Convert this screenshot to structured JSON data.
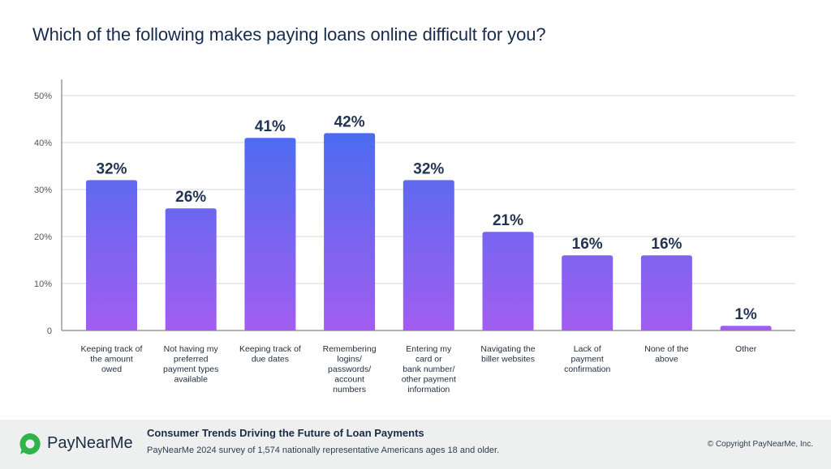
{
  "chart_data": {
    "type": "bar",
    "title": "Which of the following makes paying loans online difficult for you?",
    "categories": [
      "Keeping track of the amount owed",
      "Not having my preferred payment types available",
      "Keeping track of due dates",
      "Remembering logins/ passwords/ account numbers",
      "Entering my card or bank number/ other payment information",
      "Navigating the biller websites",
      "Lack of payment confirmation",
      "None of the above",
      "Other"
    ],
    "category_lines": [
      [
        "Keeping track of",
        "the amount",
        "owed"
      ],
      [
        "Not having my",
        "preferred",
        "payment types",
        "available"
      ],
      [
        "Keeping track of",
        "due dates"
      ],
      [
        "Remembering",
        "logins/",
        "passwords/",
        "account",
        "numbers"
      ],
      [
        "Entering my",
        "card or",
        "bank number/",
        "other payment",
        "information"
      ],
      [
        "Navigating the",
        "biller websites"
      ],
      [
        "Lack of",
        "payment",
        "confirmation"
      ],
      [
        "None of the",
        "above"
      ],
      [
        "Other"
      ]
    ],
    "values": [
      32,
      26,
      41,
      42,
      32,
      21,
      16,
      16,
      1
    ],
    "value_labels": [
      "32%",
      "26%",
      "41%",
      "42%",
      "32%",
      "21%",
      "16%",
      "16%",
      "1%"
    ],
    "y_ticks": [
      "0",
      "10%",
      "20%",
      "30%",
      "40%",
      "50%"
    ],
    "ylim": [
      0,
      50
    ],
    "grid": true,
    "colors": {
      "gradient_top": "#3b6ff0",
      "gradient_bottom": "#a15ef0",
      "grid": "#d9d9d9",
      "axis": "#9a9a9a",
      "value_label": "#22344f",
      "tick_label": "#555555",
      "category_label": "#1f2d3d"
    }
  },
  "footer": {
    "brand": "PayNearMe",
    "title": "Consumer Trends Driving the Future of Loan Payments",
    "subtitle": "PayNearMe 2024 survey of 1,574 nationally representative Americans ages 18 and older.",
    "copyright": "© Copyright PayNearMe, Inc.",
    "brand_color": "#2fb34a"
  }
}
